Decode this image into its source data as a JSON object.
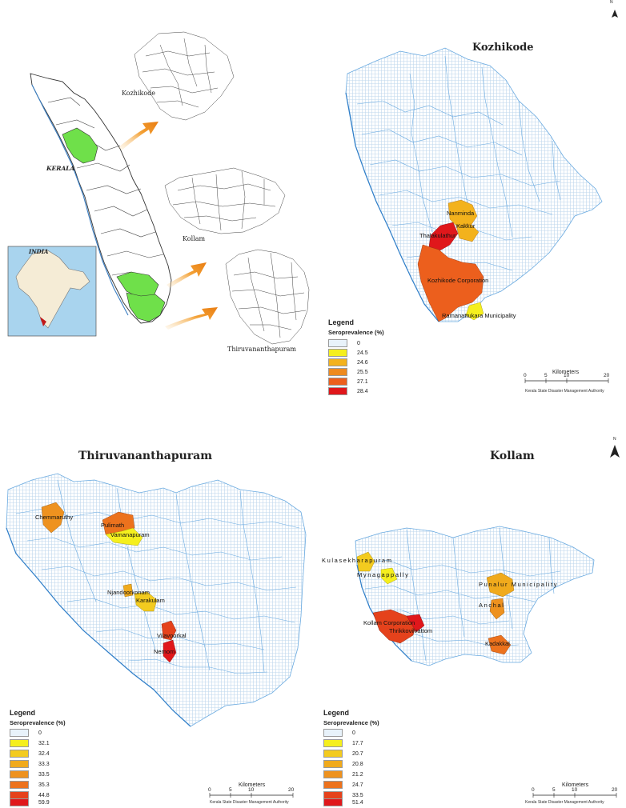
{
  "overview": {
    "state_label": "KERALA",
    "country_label": "INDIA",
    "district_labels": [
      "Kozhikode",
      "Kollam",
      "Thiruvananthapuram"
    ]
  },
  "panels": {
    "kozhikode": {
      "title": "Kozhikode",
      "north": "N",
      "places": [
        "Nanminda",
        "Kakkur",
        "Thalakulathur",
        "Kozhikode Corporation",
        "Ramanattukara Municipality"
      ],
      "legend": {
        "title": "Legend",
        "subtitle": "Seroprevalence (%)",
        "values": [
          "0",
          "24.5",
          "24.6",
          "25.5",
          "27.1",
          "28.4"
        ],
        "colors": [
          "#e8f2fa",
          "#f5ef1e",
          "#f3b21c",
          "#ee8a1f",
          "#ec5f1d",
          "#e0171b"
        ]
      },
      "scale": {
        "title": "Kilometers",
        "ticks": [
          "0",
          "5",
          "10",
          "20"
        ],
        "credit": "Kerala State Disaster Management Authority"
      }
    },
    "thiruvananthapuram": {
      "title": "Thiruvananthapuram",
      "places": [
        "Chemmaruthy",
        "Pulimath",
        "Vamanapuram",
        "Njandoorkonam",
        "Karakulam",
        "Vilavoorkal",
        "Nemom"
      ],
      "legend": {
        "title": "Legend",
        "subtitle": "Seroprevalence (%)",
        "values": [
          "0",
          "32.1",
          "32.4",
          "33.3",
          "33.5",
          "35.3",
          "44.8",
          "59.9"
        ],
        "colors": [
          "#e8f2fa",
          "#f5ef1e",
          "#f3cb1f",
          "#f0aa1c",
          "#ee921f",
          "#ec721d",
          "#e5421c",
          "#e0171b"
        ]
      },
      "scale": {
        "title": "Kilometers",
        "ticks": [
          "0",
          "5",
          "10",
          "20"
        ],
        "credit": "Kerala State Disaster Management Authority"
      }
    },
    "kollam": {
      "title": "Kollam",
      "north": "N",
      "places": [
        "Kulasekharapuram",
        "Mynagappally",
        "Punalur Municipality",
        "Anchal",
        "Kollam Corporation",
        "Thrikkovilvattom",
        "Kadakkal"
      ],
      "legend": {
        "title": "Legend",
        "subtitle": "Seroprevalence (%)",
        "values": [
          "0",
          "17.7",
          "20.7",
          "20.8",
          "21.2",
          "24.7",
          "33.5",
          "51.4"
        ],
        "colors": [
          "#e8f2fa",
          "#f5ef1e",
          "#f3cb1f",
          "#f0aa1c",
          "#ee921f",
          "#ec721d",
          "#e5421c",
          "#e0171b"
        ]
      },
      "scale": {
        "title": "Kilometers",
        "ticks": [
          "0",
          "5",
          "10",
          "20"
        ],
        "credit": "Kerala State Disaster Management Authority"
      }
    }
  }
}
